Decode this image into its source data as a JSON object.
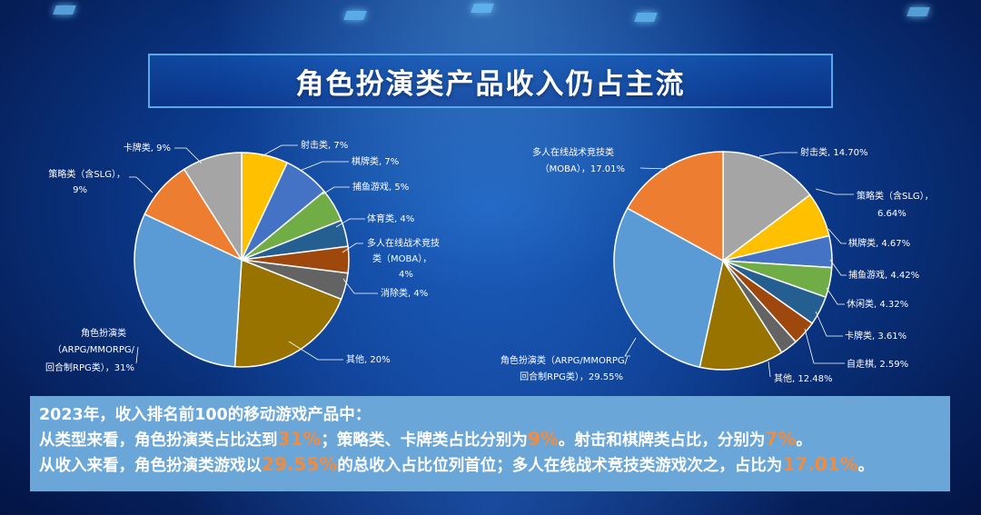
{
  "title": "角色扮演类产品收入仍占主流",
  "colors": {
    "accent_orange": "#F58A3A",
    "title_border": "#59A8E8",
    "summary_bg": "#6AA6D8"
  },
  "chart_data": [
    {
      "type": "pie",
      "name": "",
      "slices": [
        {
          "label": "射击类, 7%",
          "value": 7,
          "color": "#FFC000"
        },
        {
          "label": "棋牌类, 7%",
          "value": 7,
          "color": "#4472C4"
        },
        {
          "label": "捕鱼游戏, 5%",
          "value": 5,
          "color": "#70AD47"
        },
        {
          "label": "体育类, 4%",
          "value": 4,
          "color": "#255E91"
        },
        {
          "label": "多人在线战术竞技类（MOBA），4%",
          "value": 4,
          "color": "#9E480E"
        },
        {
          "label": "消除类, 4%",
          "value": 4,
          "color": "#636363"
        },
        {
          "label": "其他, 20%",
          "value": 20,
          "color": "#997300"
        },
        {
          "label": "角色扮演类（ARPG/MMORPG/回合制RPG类），31%",
          "value": 31,
          "color": "#5B9BD5"
        },
        {
          "label": "策略类（含SLG），9%",
          "value": 9,
          "color": "#ED7D31"
        },
        {
          "label": "卡牌类, 9%",
          "value": 9,
          "color": "#A5A5A5"
        }
      ]
    },
    {
      "type": "pie",
      "name": "",
      "slices": [
        {
          "label": "射击类, 14.70%",
          "value": 14.7,
          "color": "#A5A5A5"
        },
        {
          "label": "策略类（含SLG），6.64%",
          "value": 6.64,
          "color": "#FFC000"
        },
        {
          "label": "棋牌类, 4.67%",
          "value": 4.67,
          "color": "#4472C4"
        },
        {
          "label": "捕鱼游戏, 4.42%",
          "value": 4.42,
          "color": "#70AD47"
        },
        {
          "label": "休闲类, 4.32%",
          "value": 4.32,
          "color": "#255E91"
        },
        {
          "label": "卡牌类, 3.61%",
          "value": 3.61,
          "color": "#9E480E"
        },
        {
          "label": "自走棋, 2.59%",
          "value": 2.59,
          "color": "#636363"
        },
        {
          "label": "其他, 12.48%",
          "value": 12.48,
          "color": "#997300"
        },
        {
          "label": "角色扮演类（ARPG/MMORPG/回合制RPG类），29.55%",
          "value": 29.55,
          "color": "#5B9BD5"
        },
        {
          "label": "多人在线战术竞技类（MOBA），17.01%",
          "value": 17.01,
          "color": "#ED7D31"
        }
      ]
    }
  ],
  "labels_left": {
    "l0": "射击类, 7%",
    "l1": "棋牌类, 7%",
    "l2": "捕鱼游戏, 5%",
    "l3": "体育类, 4%",
    "l4a": "多人在线战术竞技",
    "l4b": "类（MOBA），",
    "l4c": "4%",
    "l5": "消除类, 4%",
    "l6": "其他, 20%",
    "l7a": "角色扮演类",
    "l7b": "（ARPG/MMORPG/",
    "l7c": "回合制RPG类），31%",
    "l8a": "策略类（含SLG），",
    "l8b": "9%",
    "l9": "卡牌类, 9%"
  },
  "labels_right": {
    "r0": "射击类, 14.70%",
    "r1a": "策略类（含SLG），",
    "r1b": "6.64%",
    "r2": "棋牌类, 4.67%",
    "r3": "捕鱼游戏, 4.42%",
    "r4": "休闲类, 4.32%",
    "r5": "卡牌类, 3.61%",
    "r6": "自走棋, 2.59%",
    "r7": "其他, 12.48%",
    "r8a": "角色扮演类（ARPG/MMORPG/",
    "r8b": "回合制RPG类），29.55%",
    "r9a": "多人在线战术竞技类",
    "r9b": "（MOBA），17.01%"
  },
  "summary": {
    "line1": "2023年，收入排名前100的移动游戏产品中：",
    "line2_a": "从类型来看，角色扮演类占比达到",
    "line2_h1": "31%",
    "line2_b": "；策略类、卡牌类占比分别为",
    "line2_h2": "9%",
    "line2_c": "。射击和棋牌类占比，分别为",
    "line2_h3": "7%",
    "line2_d": "。",
    "line3_a": "从收入来看，角色扮演类游戏以",
    "line3_h1": "29.55%",
    "line3_b": "的总收入占比位列首位；多人在线战术竞技类游戏次之，占比为",
    "line3_h2": "17.01%",
    "line3_c": "。"
  }
}
